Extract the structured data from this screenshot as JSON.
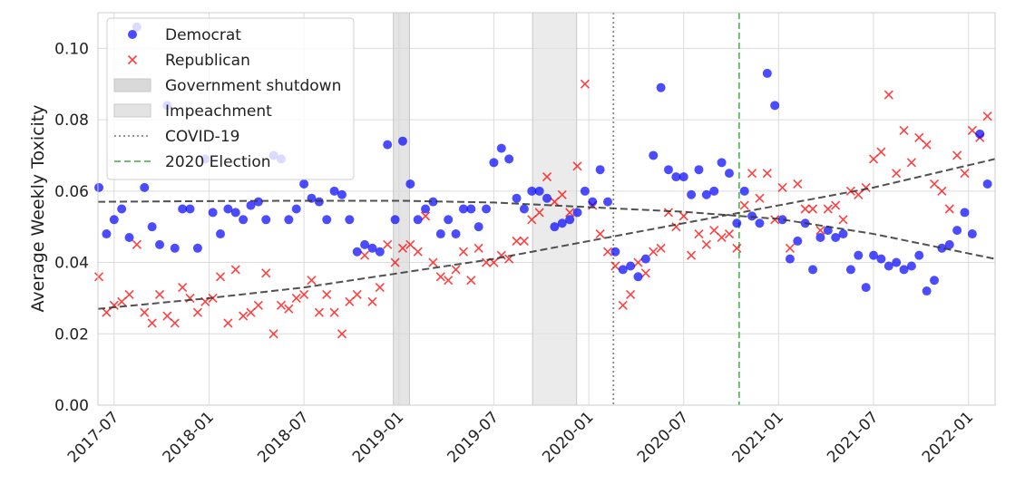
{
  "chart_data": {
    "type": "scatter",
    "ylabel": "Average Weekly Toxicity",
    "xlim": [
      2017.415,
      2022.14
    ],
    "ylim": [
      0,
      0.11
    ],
    "xticks": [
      {
        "value": 2017.5,
        "label": "2017-07"
      },
      {
        "value": 2018.0,
        "label": "2018-01"
      },
      {
        "value": 2018.5,
        "label": "2018-07"
      },
      {
        "value": 2019.0,
        "label": "2019-01"
      },
      {
        "value": 2019.5,
        "label": "2019-07"
      },
      {
        "value": 2020.0,
        "label": "2020-01"
      },
      {
        "value": 2020.5,
        "label": "2020-07"
      },
      {
        "value": 2021.0,
        "label": "2021-01"
      },
      {
        "value": 2021.5,
        "label": "2021-07"
      },
      {
        "value": 2022.0,
        "label": "2022-01"
      }
    ],
    "yticks": [
      {
        "value": 0,
        "label": "0.00"
      },
      {
        "value": 0.02,
        "label": "0.02"
      },
      {
        "value": 0.04,
        "label": "0.04"
      },
      {
        "value": 0.06,
        "label": "0.06"
      },
      {
        "value": 0.08,
        "label": "0.08"
      },
      {
        "value": 0.1,
        "label": "0.10"
      }
    ],
    "grid": true,
    "legend": "upper left",
    "x": [
      2017.42,
      2017.46,
      2017.5,
      2017.54,
      2017.58,
      2017.62,
      2017.66,
      2017.7,
      2017.74,
      2017.78,
      2017.82,
      2017.86,
      2017.9,
      2017.94,
      2017.98,
      2018.02,
      2018.06,
      2018.1,
      2018.14,
      2018.18,
      2018.22,
      2018.26,
      2018.3,
      2018.34,
      2018.38,
      2018.42,
      2018.46,
      2018.5,
      2018.54,
      2018.58,
      2018.62,
      2018.66,
      2018.7,
      2018.74,
      2018.78,
      2018.82,
      2018.86,
      2018.9,
      2018.94,
      2018.98,
      2019.02,
      2019.06,
      2019.1,
      2019.14,
      2019.18,
      2019.22,
      2019.26,
      2019.3,
      2019.34,
      2019.38,
      2019.42,
      2019.46,
      2019.5,
      2019.54,
      2019.58,
      2019.62,
      2019.66,
      2019.7,
      2019.74,
      2019.78,
      2019.82,
      2019.86,
      2019.9,
      2019.94,
      2019.98,
      2020.02,
      2020.06,
      2020.1,
      2020.14,
      2020.18,
      2020.22,
      2020.26,
      2020.3,
      2020.34,
      2020.38,
      2020.42,
      2020.46,
      2020.5,
      2020.54,
      2020.58,
      2020.62,
      2020.66,
      2020.7,
      2020.74,
      2020.78,
      2020.82,
      2020.86,
      2020.9,
      2020.94,
      2020.98,
      2021.02,
      2021.06,
      2021.1,
      2021.14,
      2021.18,
      2021.22,
      2021.26,
      2021.3,
      2021.34,
      2021.38,
      2021.42,
      2021.46,
      2021.5,
      2021.54,
      2021.58,
      2021.62,
      2021.66,
      2021.7,
      2021.74,
      2021.78,
      2021.82,
      2021.86,
      2021.9,
      2021.94,
      2021.98,
      2022.02,
      2022.06,
      2022.1
    ],
    "series": [
      {
        "name": "Democrat",
        "color": "#0000ff",
        "marker": "o",
        "values": [
          0.061,
          0.048,
          0.052,
          0.055,
          0.047,
          0.106,
          0.061,
          0.05,
          0.045,
          0.084,
          0.044,
          0.055,
          0.055,
          0.044,
          0.069,
          0.054,
          0.048,
          0.055,
          0.054,
          0.052,
          0.056,
          0.057,
          0.052,
          0.07,
          0.069,
          0.052,
          0.055,
          0.062,
          0.058,
          0.057,
          0.052,
          0.06,
          0.059,
          0.052,
          0.043,
          0.045,
          0.044,
          0.043,
          0.073,
          0.052,
          0.074,
          0.062,
          0.052,
          0.055,
          0.057,
          0.048,
          0.052,
          0.048,
          0.055,
          0.055,
          0.05,
          0.055,
          0.068,
          0.072,
          0.069,
          0.058,
          0.055,
          0.06,
          0.06,
          0.058,
          0.05,
          0.051,
          0.052,
          0.054,
          0.06,
          0.057,
          0.066,
          0.057,
          0.043,
          0.038,
          0.039,
          0.036,
          0.041,
          0.07,
          0.089,
          0.066,
          0.064,
          0.064,
          0.059,
          0.066,
          0.059,
          0.06,
          0.068,
          0.065,
          0.051,
          0.06,
          0.053,
          0.051,
          0.093,
          0.084,
          0.052,
          0.041,
          0.046,
          0.051,
          0.038,
          0.047,
          0.049,
          0.047,
          0.048,
          0.038,
          0.042,
          0.033,
          0.042,
          0.041,
          0.039,
          0.04,
          0.038,
          0.039,
          0.042,
          0.032,
          0.035,
          0.044,
          0.045,
          0.049,
          0.054,
          0.048,
          0.076,
          0.062
        ],
        "trend": {
          "x": [
            2017.415,
            2018.0,
            2018.5,
            2019.0,
            2019.5,
            2020.0,
            2020.5,
            2021.0,
            2021.5,
            2022.14
          ],
          "values": [
            0.057,
            0.0572,
            0.0573,
            0.0573,
            0.0568,
            0.0555,
            0.0542,
            0.0522,
            0.048,
            0.041
          ]
        }
      },
      {
        "name": "Republican",
        "color": "#ff0000",
        "marker": "x",
        "values": [
          0.036,
          0.026,
          0.028,
          0.029,
          0.031,
          0.045,
          0.026,
          0.023,
          0.031,
          0.025,
          0.023,
          0.033,
          0.03,
          0.026,
          0.029,
          0.03,
          0.036,
          0.023,
          0.038,
          0.025,
          0.026,
          0.028,
          0.037,
          0.02,
          0.028,
          0.027,
          0.03,
          0.031,
          0.035,
          0.026,
          0.031,
          0.026,
          0.02,
          0.029,
          0.031,
          0.042,
          0.029,
          0.033,
          0.045,
          0.04,
          0.044,
          0.045,
          0.043,
          0.053,
          0.04,
          0.036,
          0.035,
          0.038,
          0.043,
          0.035,
          0.044,
          0.04,
          0.04,
          0.042,
          0.041,
          0.046,
          0.046,
          0.052,
          0.054,
          0.064,
          0.057,
          0.059,
          0.054,
          0.067,
          0.09,
          0.056,
          0.048,
          0.043,
          0.039,
          0.028,
          0.031,
          0.04,
          0.037,
          0.043,
          0.044,
          0.054,
          0.05,
          0.053,
          0.042,
          0.048,
          0.045,
          0.049,
          0.047,
          0.048,
          0.044,
          0.056,
          0.065,
          0.058,
          0.065,
          0.052,
          0.061,
          0.044,
          0.062,
          0.055,
          0.055,
          0.049,
          0.055,
          0.056,
          0.052,
          0.06,
          0.059,
          0.061,
          0.069,
          0.071,
          0.087,
          0.065,
          0.077,
          0.068,
          0.075,
          0.073,
          0.062,
          0.06,
          0.055,
          0.07,
          0.065,
          0.077,
          0.075,
          0.081
        ],
        "trend": {
          "x": [
            2017.415,
            2018.0,
            2018.5,
            2019.0,
            2019.5,
            2020.0,
            2020.5,
            2021.0,
            2021.5,
            2022.14
          ],
          "values": [
            0.027,
            0.03,
            0.033,
            0.037,
            0.041,
            0.046,
            0.051,
            0.056,
            0.061,
            0.069
          ]
        }
      }
    ],
    "shading": [
      {
        "name": "Government shutdown",
        "range": [
          2018.971,
          2019.056
        ],
        "color": "#d9d9d9"
      },
      {
        "name": "Impeachment",
        "range": [
          2019.704,
          2019.936
        ],
        "color": "#e3e3e3"
      }
    ],
    "vlines": [
      {
        "name": "COVID-19",
        "x": 2020.13,
        "color": "#888888",
        "style": "dotted"
      },
      {
        "name": "2020 Election",
        "x": 2020.792,
        "color": "#5cb85c",
        "style": "dashed"
      }
    ]
  }
}
